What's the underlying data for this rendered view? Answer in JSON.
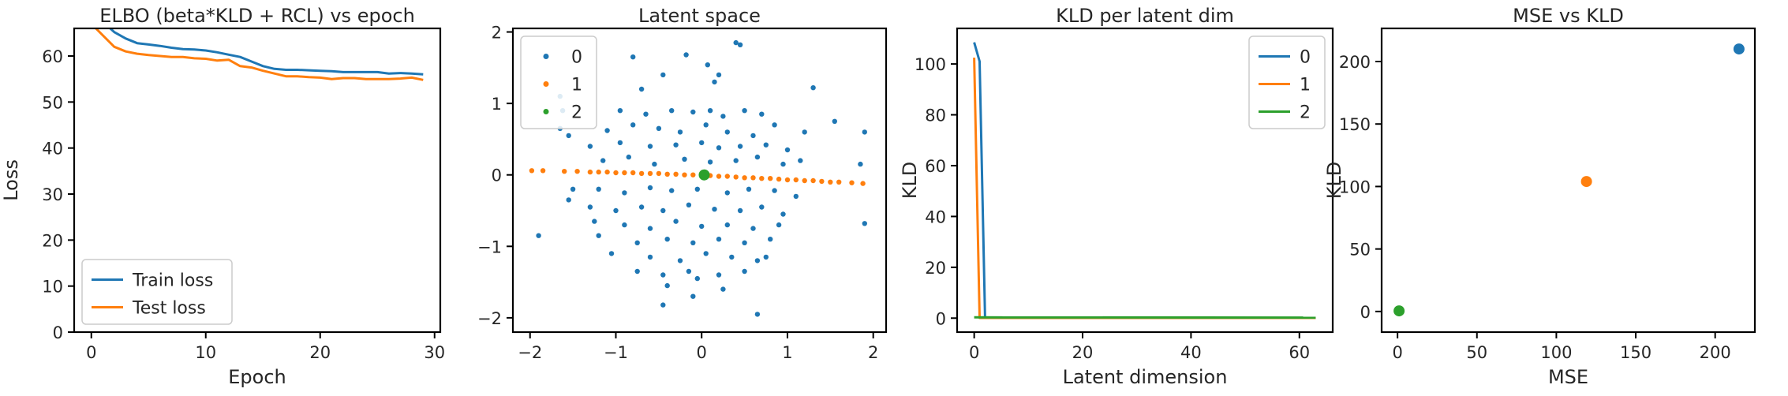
{
  "colors": {
    "c0": "#1f77b4",
    "c1": "#ff7f0e",
    "c2": "#2ca02c",
    "axis": "#000000",
    "legend_border": "#cccccc"
  },
  "chart_data": [
    {
      "type": "line",
      "title": "ELBO (beta*KLD + RCL) vs epoch",
      "xlabel": "Epoch",
      "ylabel": "Loss",
      "xlim": [
        -1.5,
        30.5
      ],
      "ylim": [
        0,
        66
      ],
      "xticks": [
        0,
        10,
        20,
        30
      ],
      "yticks": [
        0,
        10,
        20,
        30,
        40,
        50,
        60
      ],
      "legend": "lower-left",
      "grid": false,
      "x": [
        0,
        1,
        2,
        3,
        4,
        5,
        6,
        7,
        8,
        9,
        10,
        11,
        12,
        13,
        14,
        15,
        16,
        17,
        18,
        19,
        20,
        21,
        22,
        23,
        24,
        25,
        26,
        27,
        28,
        29
      ],
      "series": [
        {
          "name": "Train loss",
          "color": "#1f77b4",
          "values": [
            70.5,
            67.5,
            65.2,
            63.8,
            62.8,
            62.5,
            62.2,
            61.8,
            61.5,
            61.4,
            61.2,
            60.8,
            60.3,
            59.8,
            58.8,
            57.8,
            57.2,
            57.0,
            57.0,
            56.9,
            56.8,
            56.7,
            56.5,
            56.5,
            56.5,
            56.5,
            56.2,
            56.3,
            56.2,
            56.0
          ]
        },
        {
          "name": "Test loss",
          "color": "#ff7f0e",
          "values": [
            67.0,
            64.5,
            62.0,
            61.0,
            60.5,
            60.2,
            60.0,
            59.8,
            59.8,
            59.5,
            59.4,
            59.0,
            59.2,
            57.8,
            57.5,
            56.8,
            56.2,
            55.6,
            55.6,
            55.4,
            55.3,
            55.0,
            55.2,
            55.2,
            55.0,
            55.0,
            55.0,
            55.1,
            55.3,
            54.8
          ]
        }
      ]
    },
    {
      "type": "scatter",
      "title": "Latent space",
      "xlabel": "",
      "ylabel": "",
      "xlim": [
        -2.2,
        2.15
      ],
      "ylim": [
        -2.2,
        2.05
      ],
      "xticks": [
        -2,
        -1,
        0,
        1,
        2
      ],
      "yticks": [
        -2,
        -1,
        0,
        1,
        2
      ],
      "legend": "upper-left",
      "grid": false,
      "series": [
        {
          "name": "0",
          "color": "#1f77b4",
          "points": [
            [
              0.45,
              1.82
            ],
            [
              0.4,
              1.85
            ],
            [
              -0.18,
              1.68
            ],
            [
              -0.8,
              1.65
            ],
            [
              0.07,
              1.54
            ],
            [
              0.2,
              1.4
            ],
            [
              -0.45,
              1.4
            ],
            [
              0.15,
              1.3
            ],
            [
              1.3,
              1.22
            ],
            [
              -0.7,
              1.2
            ],
            [
              -1.65,
              1.1
            ],
            [
              -1.62,
              0.9
            ],
            [
              -0.95,
              0.9
            ],
            [
              -0.65,
              0.85
            ],
            [
              -0.35,
              0.9
            ],
            [
              -0.1,
              0.88
            ],
            [
              0.1,
              0.9
            ],
            [
              0.25,
              0.82
            ],
            [
              0.5,
              0.9
            ],
            [
              0.7,
              0.85
            ],
            [
              -1.65,
              0.65
            ],
            [
              -1.55,
              0.55
            ],
            [
              -1.1,
              0.62
            ],
            [
              -0.8,
              0.7
            ],
            [
              -0.5,
              0.65
            ],
            [
              -0.25,
              0.6
            ],
            [
              0.05,
              0.7
            ],
            [
              0.3,
              0.6
            ],
            [
              0.6,
              0.55
            ],
            [
              0.85,
              0.7
            ],
            [
              1.2,
              0.6
            ],
            [
              -1.3,
              0.4
            ],
            [
              -0.95,
              0.45
            ],
            [
              -0.6,
              0.4
            ],
            [
              -0.3,
              0.42
            ],
            [
              0.0,
              0.45
            ],
            [
              0.2,
              0.38
            ],
            [
              0.45,
              0.4
            ],
            [
              0.75,
              0.42
            ],
            [
              1.0,
              0.35
            ],
            [
              1.55,
              0.75
            ],
            [
              1.9,
              0.6
            ],
            [
              -1.15,
              0.2
            ],
            [
              -0.85,
              0.25
            ],
            [
              -0.55,
              0.15
            ],
            [
              -0.2,
              0.22
            ],
            [
              0.1,
              0.18
            ],
            [
              0.4,
              0.2
            ],
            [
              0.65,
              0.25
            ],
            [
              0.95,
              0.15
            ],
            [
              1.15,
              0.2
            ],
            [
              1.85,
              0.15
            ],
            [
              -1.5,
              -0.2
            ],
            [
              -1.2,
              -0.2
            ],
            [
              -0.9,
              -0.25
            ],
            [
              -0.6,
              -0.18
            ],
            [
              -0.35,
              -0.22
            ],
            [
              -0.05,
              -0.2
            ],
            [
              0.3,
              -0.25
            ],
            [
              0.55,
              -0.2
            ],
            [
              0.85,
              -0.22
            ],
            [
              1.1,
              -0.3
            ],
            [
              -1.55,
              -0.35
            ],
            [
              -1.3,
              -0.45
            ],
            [
              -1.0,
              -0.5
            ],
            [
              -0.7,
              -0.45
            ],
            [
              -0.45,
              -0.5
            ],
            [
              -0.15,
              -0.42
            ],
            [
              0.15,
              -0.48
            ],
            [
              0.45,
              -0.5
            ],
            [
              0.7,
              -0.45
            ],
            [
              0.95,
              -0.55
            ],
            [
              -1.25,
              -0.65
            ],
            [
              -0.9,
              -0.7
            ],
            [
              -0.6,
              -0.75
            ],
            [
              -0.3,
              -0.65
            ],
            [
              0.0,
              -0.72
            ],
            [
              0.3,
              -0.7
            ],
            [
              0.6,
              -0.75
            ],
            [
              0.9,
              -0.7
            ],
            [
              -1.9,
              -0.85
            ],
            [
              -1.2,
              -0.85
            ],
            [
              -0.75,
              -0.95
            ],
            [
              -0.4,
              -0.9
            ],
            [
              -0.1,
              -0.95
            ],
            [
              0.2,
              -0.9
            ],
            [
              0.5,
              -0.95
            ],
            [
              0.8,
              -0.9
            ],
            [
              1.9,
              -0.68
            ],
            [
              -1.05,
              -1.1
            ],
            [
              -0.6,
              -1.15
            ],
            [
              -0.25,
              -1.2
            ],
            [
              0.05,
              -1.1
            ],
            [
              0.35,
              -1.15
            ],
            [
              0.65,
              -1.2
            ],
            [
              -0.75,
              -1.35
            ],
            [
              -0.45,
              -1.4
            ],
            [
              -0.15,
              -1.35
            ],
            [
              0.2,
              -1.4
            ],
            [
              0.5,
              -1.35
            ],
            [
              -0.4,
              -1.55
            ],
            [
              0.25,
              -1.6
            ],
            [
              -0.1,
              -1.7
            ],
            [
              -0.45,
              -1.82
            ],
            [
              0.65,
              -1.95
            ],
            [
              -0.05,
              -1.45
            ],
            [
              0.75,
              -1.15
            ]
          ]
        },
        {
          "name": "1",
          "color": "#ff7f0e",
          "points": [
            [
              -1.98,
              0.06
            ],
            [
              -1.85,
              0.06
            ],
            [
              -1.6,
              0.05
            ],
            [
              -1.45,
              0.05
            ],
            [
              -1.3,
              0.04
            ],
            [
              -1.2,
              0.04
            ],
            [
              -1.1,
              0.04
            ],
            [
              -1.0,
              0.03
            ],
            [
              -0.9,
              0.03
            ],
            [
              -0.8,
              0.03
            ],
            [
              -0.7,
              0.02
            ],
            [
              -0.6,
              0.02
            ],
            [
              -0.5,
              0.02
            ],
            [
              -0.4,
              0.01
            ],
            [
              -0.3,
              0.01
            ],
            [
              -0.2,
              0.0
            ],
            [
              -0.1,
              0.0
            ],
            [
              0.0,
              -0.01
            ],
            [
              0.1,
              -0.01
            ],
            [
              0.2,
              -0.02
            ],
            [
              0.3,
              -0.02
            ],
            [
              0.4,
              -0.03
            ],
            [
              0.5,
              -0.04
            ],
            [
              0.6,
              -0.04
            ],
            [
              0.7,
              -0.05
            ],
            [
              0.8,
              -0.05
            ],
            [
              0.9,
              -0.06
            ],
            [
              1.0,
              -0.07
            ],
            [
              1.1,
              -0.07
            ],
            [
              1.2,
              -0.08
            ],
            [
              1.3,
              -0.08
            ],
            [
              1.4,
              -0.09
            ],
            [
              1.5,
              -0.1
            ],
            [
              1.6,
              -0.1
            ],
            [
              1.75,
              -0.11
            ],
            [
              1.88,
              -0.12
            ]
          ]
        },
        {
          "name": "2",
          "color": "#2ca02c",
          "points": [
            [
              0.03,
              0.0
            ]
          ]
        }
      ]
    },
    {
      "type": "line",
      "title": "KLD per latent dim",
      "xlabel": "Latent dimension",
      "ylabel": "KLD",
      "xlim": [
        -3.15,
        66.15
      ],
      "ylim": [
        -5.5,
        114.0
      ],
      "xticks": [
        0,
        20,
        40,
        60
      ],
      "yticks": [
        0,
        20,
        40,
        60,
        80,
        100
      ],
      "legend": "upper-right",
      "grid": false,
      "series": [
        {
          "name": "0",
          "color": "#1f77b4",
          "x": [
            0,
            1,
            2,
            63
          ],
          "values": [
            108.5,
            101.0,
            0.1,
            0.1
          ]
        },
        {
          "name": "1",
          "color": "#ff7f0e",
          "x": [
            0,
            1,
            63
          ],
          "values": [
            102.5,
            0.1,
            0.1
          ]
        },
        {
          "name": "2",
          "color": "#2ca02c",
          "x": [
            0,
            63
          ],
          "values": [
            0.3,
            0.2
          ]
        }
      ]
    },
    {
      "type": "scatter",
      "title": "MSE vs KLD",
      "xlabel": "MSE",
      "ylabel": "KLD",
      "xlim": [
        -10,
        225
      ],
      "ylim": [
        -16.5,
        226.5
      ],
      "xticks": [
        0,
        50,
        100,
        150,
        200
      ],
      "yticks": [
        0,
        50,
        100,
        150,
        200
      ],
      "legend": "none",
      "grid": false,
      "series": [
        {
          "name": "",
          "color": "#1f77b4",
          "points": [
            [
              215,
              210
            ]
          ]
        },
        {
          "name": "",
          "color": "#ff7f0e",
          "points": [
            [
              119,
              104
            ]
          ]
        },
        {
          "name": "",
          "color": "#2ca02c",
          "points": [
            [
              1,
              0.5
            ]
          ]
        }
      ]
    }
  ]
}
